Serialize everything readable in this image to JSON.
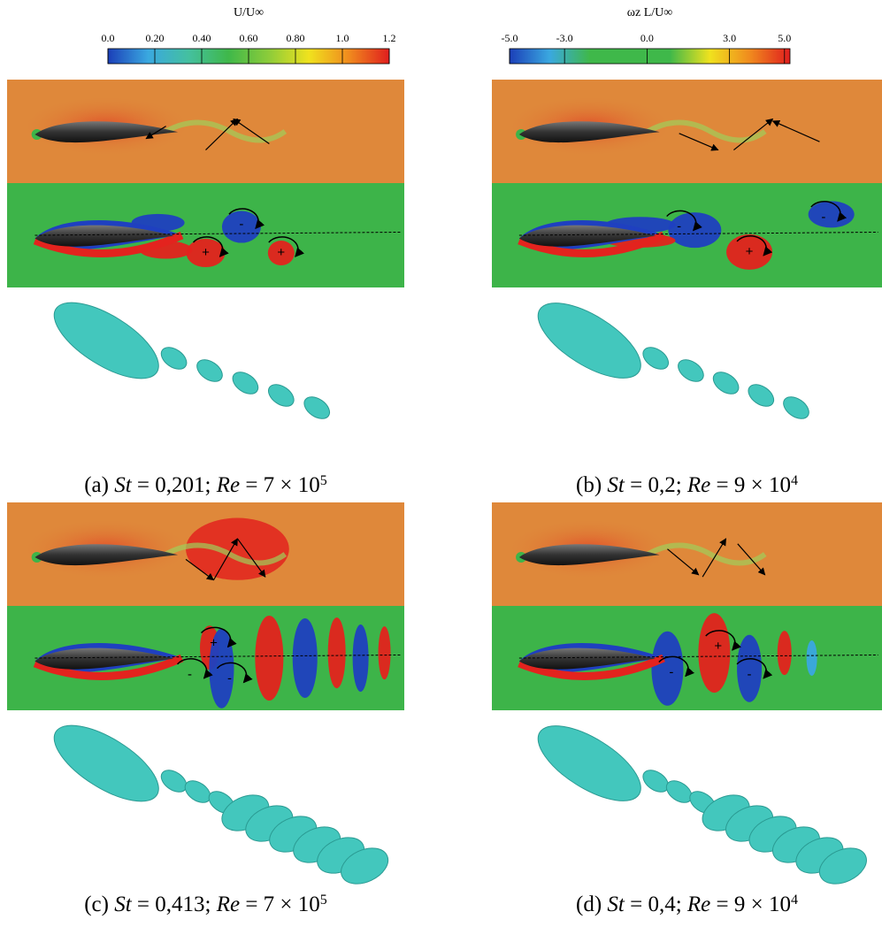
{
  "colorbars": [
    {
      "title": "U/U∞",
      "range": [
        0,
        1.2
      ],
      "ticks": [
        {
          "value": 0,
          "label": "0.0"
        },
        {
          "value": 0.2,
          "label": "0.20"
        },
        {
          "value": 0.4,
          "label": "0.40"
        },
        {
          "value": 0.6,
          "label": "0.60"
        },
        {
          "value": 0.8,
          "label": "0.80"
        },
        {
          "value": 1,
          "label": "1.0"
        },
        {
          "value": 1.2,
          "label": "1.2"
        }
      ],
      "colors": [
        "#1b3fb8",
        "#3aa8e0",
        "#44c0a0",
        "#3fb84a",
        "#8ccc3a",
        "#f0e21e",
        "#f08a1e",
        "#e01e1e"
      ]
    },
    {
      "title": "ωz L/U∞",
      "range": [
        -5,
        5.2
      ],
      "ticks": [
        {
          "value": -5,
          "label": "-5.0"
        },
        {
          "value": -3,
          "label": "-3.0"
        },
        {
          "value": 0,
          "label": "0.0"
        },
        {
          "value": 3,
          "label": "3.0"
        },
        {
          "value": 5,
          "label": "5.0"
        }
      ],
      "colors": [
        "#1b3fb8",
        "#3aa8e0",
        "#3fb84a",
        "#3fb84a",
        "#3fb84a",
        "#f0e21e",
        "#f08a1e",
        "#e01e1e"
      ]
    }
  ],
  "panels": [
    {
      "caption": [
        {
          "text": "(a) "
        },
        {
          "text": "St",
          "style": "italic"
        },
        {
          "text": " = 0,201; "
        },
        {
          "text": "Re",
          "style": "italic"
        },
        {
          "text": " = 7 × 10"
        },
        {
          "text": "5",
          "style": "sup"
        }
      ],
      "signs": [
        "-",
        "+",
        "+"
      ]
    },
    {
      "caption": [
        {
          "text": "(b) "
        },
        {
          "text": "St",
          "style": "italic"
        },
        {
          "text": " = 0,2; "
        },
        {
          "text": "Re",
          "style": "italic"
        },
        {
          "text": " = 9 × 10"
        },
        {
          "text": "4",
          "style": "sup"
        }
      ],
      "signs": [
        "-",
        "+",
        "-"
      ]
    },
    {
      "caption": [
        {
          "text": "(c) "
        },
        {
          "text": "St",
          "style": "italic"
        },
        {
          "text": " = 0,413; "
        },
        {
          "text": "Re",
          "style": "italic"
        },
        {
          "text": " = 7 × 10"
        },
        {
          "text": "5",
          "style": "sup"
        }
      ],
      "signs": [
        "+",
        "-",
        "-"
      ]
    },
    {
      "caption": [
        {
          "text": "(d) "
        },
        {
          "text": "St",
          "style": "italic"
        },
        {
          "text": " = 0,4; "
        },
        {
          "text": "Re",
          "style": "italic"
        },
        {
          "text": " = 9 × 10"
        },
        {
          "text": "4",
          "style": "sup"
        }
      ],
      "signs": [
        "+",
        "-",
        "-"
      ]
    }
  ]
}
